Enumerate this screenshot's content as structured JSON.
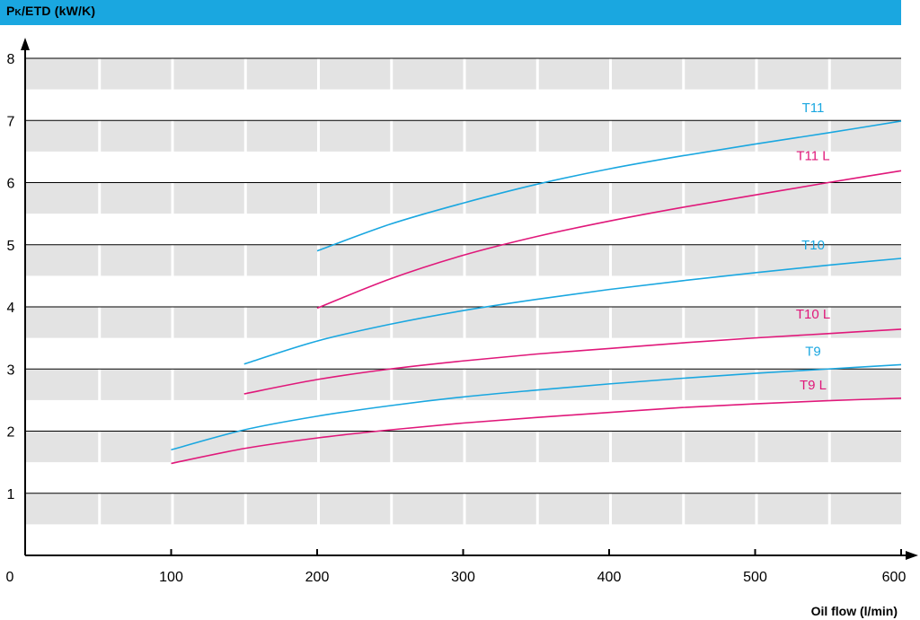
{
  "chart_data": {
    "type": "line",
    "title_main": "P",
    "title_sub": "K",
    "title_rest": "/ETD (kW/K)",
    "xlabel": "Oil flow (l/min)",
    "xlim": [
      0,
      600
    ],
    "ylim": [
      0,
      8
    ],
    "xticks": [
      0,
      100,
      200,
      300,
      400,
      500,
      600
    ],
    "yticks": [
      1,
      2,
      3,
      4,
      5,
      6,
      7,
      8
    ],
    "grid": true,
    "colors": {
      "blue": "#1aa7e0",
      "magenta": "#e0187a",
      "band": "#e3e3e3"
    },
    "series": [
      {
        "name": "T11",
        "color": "blue",
        "x": [
          200,
          250,
          300,
          350,
          400,
          450,
          500,
          550,
          600
        ],
        "y": [
          4.9,
          5.33,
          5.67,
          5.97,
          6.22,
          6.43,
          6.62,
          6.8,
          6.99
        ]
      },
      {
        "name": "T11 L",
        "color": "magenta",
        "x": [
          200,
          250,
          300,
          350,
          400,
          450,
          500,
          550,
          600
        ],
        "y": [
          3.98,
          4.45,
          4.83,
          5.13,
          5.38,
          5.6,
          5.8,
          6.0,
          6.19
        ]
      },
      {
        "name": "T10",
        "color": "blue",
        "x": [
          150,
          200,
          250,
          300,
          350,
          400,
          450,
          500,
          550,
          600
        ],
        "y": [
          3.08,
          3.45,
          3.72,
          3.94,
          4.12,
          4.28,
          4.42,
          4.55,
          4.67,
          4.78
        ]
      },
      {
        "name": "T10 L",
        "color": "magenta",
        "x": [
          150,
          200,
          250,
          300,
          350,
          400,
          450,
          500,
          550,
          600
        ],
        "y": [
          2.6,
          2.83,
          3.0,
          3.13,
          3.24,
          3.33,
          3.42,
          3.5,
          3.57,
          3.64
        ]
      },
      {
        "name": "T9",
        "color": "blue",
        "x": [
          100,
          150,
          200,
          250,
          300,
          350,
          400,
          450,
          500,
          550,
          600
        ],
        "y": [
          1.7,
          2.02,
          2.24,
          2.41,
          2.55,
          2.66,
          2.76,
          2.85,
          2.93,
          3.0,
          3.07
        ]
      },
      {
        "name": "T9 L",
        "color": "magenta",
        "x": [
          100,
          150,
          200,
          250,
          300,
          350,
          400,
          450,
          500,
          550,
          600
        ],
        "y": [
          1.48,
          1.72,
          1.89,
          2.02,
          2.13,
          2.22,
          2.3,
          2.38,
          2.44,
          2.49,
          2.53
        ]
      }
    ]
  }
}
